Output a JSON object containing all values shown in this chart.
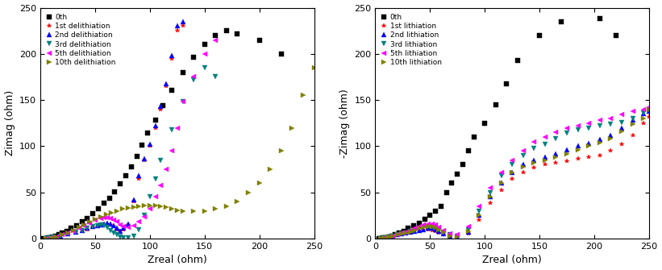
{
  "left_plot": {
    "xlabel": "Zreal (ohm)",
    "ylabel": "Zimag (ohm)",
    "xlim": [
      0,
      250
    ],
    "ylim": [
      0,
      250
    ],
    "xticks": [
      0,
      50,
      100,
      150,
      200,
      250
    ],
    "yticks": [
      0,
      50,
      100,
      150,
      200,
      250
    ],
    "legend_labels": [
      "0th",
      "1st delithiation",
      "2nd delithiation",
      "3rd delithiation",
      "5th delithiation",
      "10th delithiation"
    ],
    "series": {
      "0th": {
        "color": "black",
        "marker": "s",
        "x": [
          3,
          5,
          7,
          9,
          11,
          14,
          17,
          20,
          24,
          28,
          33,
          38,
          43,
          48,
          53,
          58,
          63,
          68,
          73,
          78,
          83,
          88,
          93,
          98,
          105,
          112,
          120,
          130,
          140,
          150,
          160,
          170,
          180,
          200,
          220
        ],
        "y": [
          0,
          0,
          1,
          1,
          2,
          3,
          4,
          6,
          8,
          11,
          14,
          18,
          22,
          27,
          32,
          38,
          44,
          51,
          59,
          68,
          78,
          89,
          101,
          114,
          128,
          144,
          161,
          180,
          196,
          210,
          220,
          225,
          222,
          215,
          200
        ]
      },
      "1st": {
        "color": "#ff0000",
        "marker": "*",
        "x": [
          5,
          8,
          12,
          18,
          25,
          32,
          38,
          43,
          48,
          52,
          55,
          58,
          61,
          64,
          67,
          70,
          73,
          76,
          80,
          85,
          90,
          95,
          100,
          105,
          110,
          115,
          120,
          125,
          130
        ],
        "y": [
          0,
          1,
          2,
          3,
          5,
          7,
          9,
          10,
          12,
          13,
          14,
          15,
          16,
          15,
          13,
          10,
          8,
          10,
          15,
          40,
          65,
          85,
          100,
          120,
          140,
          165,
          195,
          225,
          230
        ]
      },
      "2nd": {
        "color": "#0000ff",
        "marker": "^",
        "x": [
          5,
          8,
          12,
          18,
          25,
          32,
          38,
          43,
          48,
          52,
          55,
          58,
          61,
          64,
          67,
          70,
          73,
          76,
          80,
          85,
          90,
          95,
          100,
          105,
          110,
          115,
          120,
          125,
          130
        ],
        "y": [
          0,
          1,
          2,
          3,
          5,
          7,
          9,
          11,
          13,
          14,
          15,
          16,
          17,
          16,
          14,
          11,
          8,
          11,
          16,
          42,
          68,
          86,
          102,
          122,
          143,
          168,
          198,
          230,
          235
        ]
      },
      "3rd": {
        "color": "#008080",
        "marker": "v",
        "x": [
          5,
          8,
          12,
          18,
          25,
          32,
          38,
          43,
          48,
          52,
          55,
          58,
          61,
          64,
          67,
          70,
          73,
          76,
          80,
          85,
          90,
          95,
          100,
          105,
          110,
          120,
          130,
          140,
          150,
          160
        ],
        "y": [
          0,
          1,
          2,
          3,
          5,
          7,
          9,
          11,
          13,
          14,
          15,
          14,
          12,
          9,
          6,
          4,
          2,
          1,
          1,
          3,
          10,
          25,
          45,
          65,
          85,
          118,
          148,
          172,
          185,
          175
        ]
      },
      "5th": {
        "color": "#ff00ff",
        "marker": "<",
        "x": [
          5,
          10,
          15,
          20,
          25,
          30,
          35,
          40,
          45,
          50,
          55,
          58,
          61,
          64,
          67,
          70,
          73,
          76,
          80,
          85,
          90,
          95,
          100,
          105,
          110,
          115,
          120,
          125,
          130,
          140,
          150,
          160
        ],
        "y": [
          0,
          1,
          2,
          4,
          6,
          8,
          11,
          14,
          17,
          20,
          22,
          23,
          23,
          22,
          20,
          18,
          15,
          13,
          12,
          14,
          18,
          24,
          32,
          45,
          58,
          75,
          95,
          120,
          148,
          175,
          200,
          215
        ]
      },
      "10th": {
        "color": "#808000",
        "marker": ">",
        "x": [
          5,
          10,
          15,
          20,
          25,
          30,
          35,
          40,
          45,
          50,
          55,
          60,
          65,
          70,
          75,
          80,
          85,
          90,
          95,
          100,
          105,
          110,
          115,
          120,
          125,
          130,
          140,
          150,
          160,
          170,
          180,
          190,
          200,
          210,
          220,
          230,
          240,
          250
        ],
        "y": [
          0,
          1,
          2,
          4,
          6,
          9,
          12,
          15,
          18,
          21,
          24,
          26,
          28,
          30,
          32,
          33,
          34,
          35,
          36,
          36,
          36,
          35,
          34,
          32,
          31,
          30,
          30,
          30,
          32,
          35,
          40,
          50,
          60,
          75,
          95,
          120,
          155,
          185
        ]
      }
    }
  },
  "right_plot": {
    "xlabel": "Zreal (ohm)",
    "ylabel": "-Zimag (ohm)",
    "xlim": [
      0,
      250
    ],
    "ylim": [
      0,
      250
    ],
    "xticks": [
      0,
      50,
      100,
      150,
      200,
      250
    ],
    "yticks": [
      0,
      50,
      100,
      150,
      200,
      250
    ],
    "legend_labels": [
      "0th",
      "1st lithiation",
      "2nd lithiation",
      "3rd lithiation",
      "5th lithiation",
      "10th lithiation"
    ],
    "series": {
      "0th": {
        "color": "black",
        "marker": "s",
        "x": [
          3,
          5,
          7,
          9,
          12,
          15,
          18,
          22,
          26,
          30,
          35,
          40,
          45,
          50,
          55,
          60,
          65,
          70,
          75,
          80,
          85,
          90,
          100,
          110,
          120,
          130,
          150,
          170,
          205,
          220
        ],
        "y": [
          0,
          0,
          1,
          1,
          2,
          3,
          4,
          6,
          8,
          11,
          14,
          17,
          21,
          25,
          30,
          35,
          50,
          60,
          70,
          80,
          95,
          110,
          125,
          145,
          168,
          193,
          220,
          235,
          238,
          220
        ]
      },
      "1st": {
        "color": "#ff0000",
        "marker": "*",
        "x": [
          5,
          8,
          12,
          16,
          20,
          24,
          28,
          32,
          36,
          40,
          44,
          48,
          52,
          55,
          58,
          62,
          68,
          75,
          85,
          95,
          105,
          115,
          125,
          135,
          145,
          155,
          165,
          175,
          185,
          195,
          205,
          215,
          225,
          235,
          245,
          250
        ],
        "y": [
          0,
          1,
          2,
          3,
          4,
          5,
          6,
          7,
          8,
          9,
          10,
          10,
          9,
          8,
          6,
          4,
          2,
          1,
          5,
          20,
          38,
          52,
          65,
          72,
          77,
          80,
          82,
          84,
          86,
          88,
          90,
          95,
          102,
          112,
          125,
          132
        ]
      },
      "2nd": {
        "color": "#0000ff",
        "marker": "^",
        "x": [
          5,
          8,
          12,
          16,
          20,
          24,
          28,
          32,
          36,
          40,
          44,
          48,
          52,
          55,
          58,
          62,
          68,
          75,
          85,
          95,
          105,
          115,
          125,
          135,
          145,
          155,
          165,
          175,
          185,
          195,
          205,
          215,
          225,
          235,
          245,
          250
        ],
        "y": [
          0,
          1,
          2,
          3,
          4,
          5,
          6,
          7,
          8,
          9,
          10,
          11,
          11,
          10,
          8,
          5,
          3,
          2,
          7,
          25,
          45,
          60,
          72,
          80,
          85,
          88,
          92,
          96,
          100,
          103,
          107,
          112,
          120,
          128,
          135,
          138
        ]
      },
      "3rd": {
        "color": "#008080",
        "marker": "v",
        "x": [
          5,
          8,
          12,
          16,
          20,
          24,
          28,
          32,
          36,
          40,
          44,
          48,
          52,
          55,
          58,
          62,
          68,
          75,
          85,
          95,
          105,
          115,
          125,
          135,
          145,
          155,
          165,
          175,
          185,
          195,
          205,
          215,
          225,
          235,
          245,
          250
        ],
        "y": [
          0,
          1,
          2,
          3,
          4,
          5,
          6,
          8,
          9,
          11,
          12,
          13,
          13,
          12,
          10,
          7,
          4,
          3,
          10,
          30,
          50,
          68,
          80,
          90,
          98,
          102,
          108,
          114,
          118,
          120,
          122,
          124,
          126,
          130,
          136,
          140
        ]
      },
      "5th": {
        "color": "#ff00ff",
        "marker": "<",
        "x": [
          5,
          8,
          12,
          16,
          20,
          24,
          28,
          32,
          36,
          40,
          44,
          48,
          52,
          55,
          58,
          62,
          68,
          75,
          85,
          95,
          105,
          115,
          125,
          135,
          145,
          155,
          165,
          175,
          185,
          195,
          205,
          215,
          225,
          235,
          245,
          250
        ],
        "y": [
          0,
          1,
          2,
          3,
          4,
          6,
          7,
          9,
          11,
          13,
          15,
          16,
          16,
          15,
          12,
          9,
          5,
          4,
          13,
          35,
          55,
          72,
          85,
          95,
          105,
          110,
          115,
          120,
          122,
          125,
          128,
          130,
          134,
          138,
          140,
          142
        ]
      },
      "10th": {
        "color": "#808000",
        "marker": ">",
        "x": [
          5,
          8,
          12,
          16,
          20,
          24,
          28,
          32,
          36,
          40,
          44,
          48,
          52,
          55,
          58,
          62,
          68,
          75,
          85,
          95,
          105,
          115,
          125,
          135,
          145,
          155,
          165,
          175,
          185,
          195,
          205,
          215,
          225,
          235,
          245,
          250
        ],
        "y": [
          0,
          1,
          2,
          3,
          4,
          5,
          6,
          7,
          9,
          11,
          12,
          13,
          13,
          12,
          10,
          7,
          3,
          2,
          8,
          25,
          45,
          60,
          72,
          78,
          82,
          85,
          88,
          92,
          96,
          100,
          104,
          108,
          116,
          124,
          130,
          140
        ]
      }
    }
  }
}
